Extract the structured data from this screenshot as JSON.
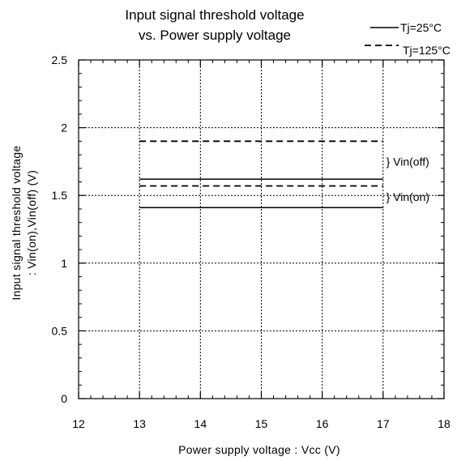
{
  "chart_data": {
    "type": "line",
    "title_lines": [
      "Input signal threshold voltage",
      "vs. Power supply voltage"
    ],
    "xlabel": "Power supply voltage : Vcc (V)",
    "ylabel_lines": [
      "Input signal threshold voltage",
      ": Vin(on),Vin(off) (V)"
    ],
    "xlim": [
      12,
      18
    ],
    "ylim": [
      0,
      2.5
    ],
    "x_ticks": [
      12,
      13,
      14,
      15,
      16,
      17,
      18
    ],
    "x_tick_labels": [
      "12",
      "13",
      "14",
      "15",
      "16",
      "17",
      "18"
    ],
    "y_ticks": [
      0,
      0.5,
      1,
      1.5,
      2,
      2.5
    ],
    "y_tick_labels": [
      "0",
      "0.5",
      "1",
      "1.5",
      "2",
      "2.5"
    ],
    "grid": "dotted, major ticks",
    "legend_position": "top-right, outside plot",
    "legend": [
      {
        "label": "Tj=25°C",
        "style": "solid"
      },
      {
        "label": "Tj=125°C",
        "style": "dashed"
      }
    ],
    "series": [
      {
        "legend": 1,
        "quantity": "Vin(off)",
        "x": [
          13,
          17
        ],
        "y": [
          1.9,
          1.9
        ]
      },
      {
        "legend": 0,
        "quantity": "Vin(off)",
        "x": [
          13,
          17
        ],
        "y": [
          1.62,
          1.62
        ]
      },
      {
        "legend": 1,
        "quantity": "Vin(on)",
        "x": [
          13,
          17
        ],
        "y": [
          1.57,
          1.57
        ]
      },
      {
        "legend": 0,
        "quantity": "Vin(on)",
        "x": [
          13,
          17
        ],
        "y": [
          1.41,
          1.41
        ]
      }
    ],
    "annotations": [
      {
        "text": "} Vin(off)",
        "x": 17.05,
        "y": 1.75
      },
      {
        "text": "} Vin(on)",
        "x": 17.05,
        "y": 1.49
      }
    ],
    "colors": {
      "lines": "#000000",
      "grid": "#000000",
      "background": "#ffffff"
    }
  }
}
